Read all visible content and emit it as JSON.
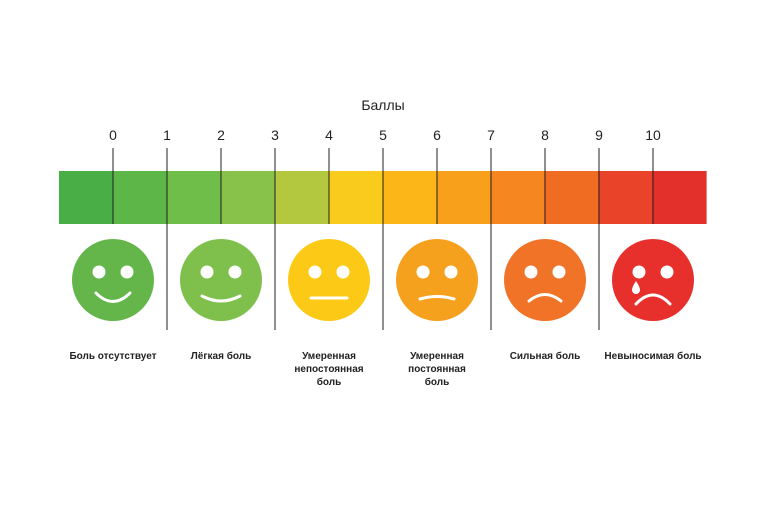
{
  "title": "Баллы",
  "scores": [
    "0",
    "1",
    "2",
    "3",
    "4",
    "5",
    "6",
    "7",
    "8",
    "9",
    "10"
  ],
  "bar_colors": [
    "#4aae47",
    "#5cb648",
    "#6fbe4a",
    "#88c24b",
    "#b4c83f",
    "#f8cb1c",
    "#fcb617",
    "#f8a01c",
    "#f6861f",
    "#ef6c22",
    "#e9432a",
    "#e3302b"
  ],
  "levels": [
    {
      "mood": "happy",
      "face_color": "#64b64b",
      "label_lines": [
        "Боль отсутствует"
      ]
    },
    {
      "mood": "smile",
      "face_color": "#7fc04c",
      "label_lines": [
        "Лёгкая боль"
      ]
    },
    {
      "mood": "neutral",
      "face_color": "#fcc917",
      "label_lines": [
        "Умеренная",
        "непостоянная",
        "боль"
      ]
    },
    {
      "mood": "flat",
      "face_color": "#f6a11e",
      "label_lines": [
        "Умеренная",
        "постоянная",
        "боль"
      ]
    },
    {
      "mood": "frown",
      "face_color": "#f07327",
      "label_lines": [
        "Сильная боль"
      ]
    },
    {
      "mood": "crying",
      "face_color": "#e7302b",
      "label_lines": [
        "Невыносимая боль"
      ]
    }
  ]
}
